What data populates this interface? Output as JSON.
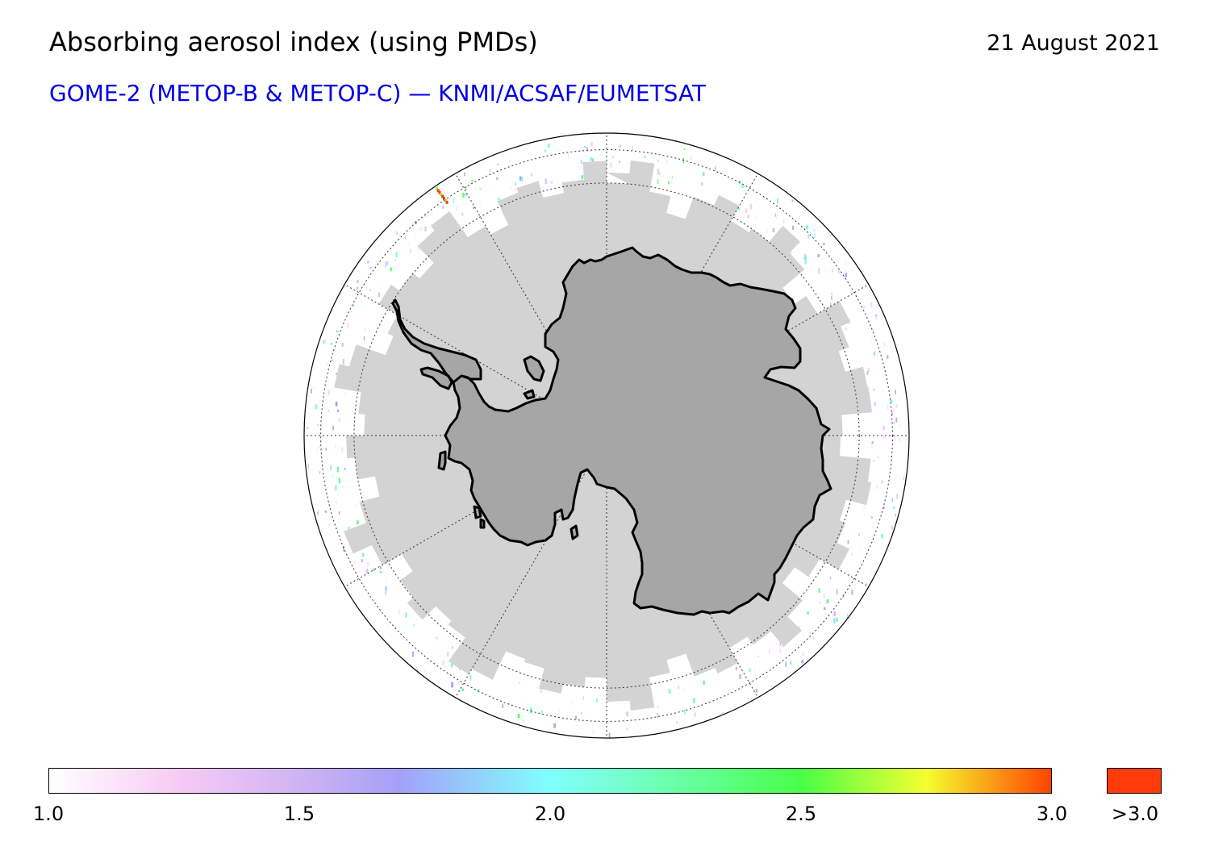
{
  "header": {
    "title": "Absorbing aerosol index (using PMDs)",
    "date": "21 August 2021",
    "subtitle": "GOME-2 (METOP-B & METOP-C) — KNMI/ACSAF/EUMETSAT"
  },
  "map": {
    "projection": "south-polar-stereographic",
    "colors": {
      "land": "#a6a6a6",
      "no_data": "#d3d3d3",
      "coast": "#000000",
      "grid": "#333333"
    }
  },
  "colorbar": {
    "min": 1.0,
    "max": 3.0,
    "ticks": [
      {
        "value": 1.0,
        "label": "1.0"
      },
      {
        "value": 1.5,
        "label": "1.5"
      },
      {
        "value": 2.0,
        "label": "2.0"
      },
      {
        "value": 2.5,
        "label": "2.5"
      },
      {
        "value": 3.0,
        "label": "3.0"
      }
    ],
    "stops": [
      {
        "value": 1.0,
        "color": "#ffffff"
      },
      {
        "value": 1.25,
        "color": "#f7ccf5"
      },
      {
        "value": 1.5,
        "color": "#cfb3f2"
      },
      {
        "value": 1.7,
        "color": "#a4a0f8"
      },
      {
        "value": 2.0,
        "color": "#80ffff"
      },
      {
        "value": 2.2,
        "color": "#70ffbb"
      },
      {
        "value": 2.5,
        "color": "#48ff48"
      },
      {
        "value": 2.75,
        "color": "#f4ff30"
      },
      {
        "value": 3.0,
        "color": "#ff4400"
      }
    ],
    "overflow_label": ">3.0",
    "overflow_color": "#ff3c0a"
  }
}
